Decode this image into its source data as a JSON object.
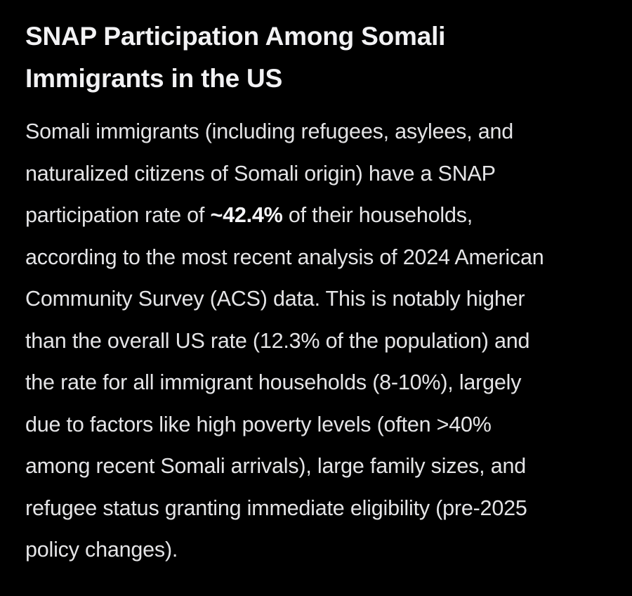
{
  "article": {
    "title_line1": "SNAP Participation Among Somali",
    "title_line2": "Immigrants in the US",
    "lines": [
      "Somali immigrants (including refugees, asylees, and",
      "naturalized citizens of Somali origin) have a SNAP",
      "participation rate of ",
      " of their households,",
      "according to the most recent analysis of 2024 American",
      "Community Survey (ACS) data. This is notably higher",
      "than the overall US rate (12.3% of the population) and",
      "the rate for all immigrant households (8-10%), largely",
      "due to factors like high poverty levels (often >40%",
      "among recent Somali arrivals), large family sizes, and",
      "refugee status granting immediate eligibility (pre-2025",
      "policy changes)."
    ],
    "highlight": "~42.4%"
  }
}
